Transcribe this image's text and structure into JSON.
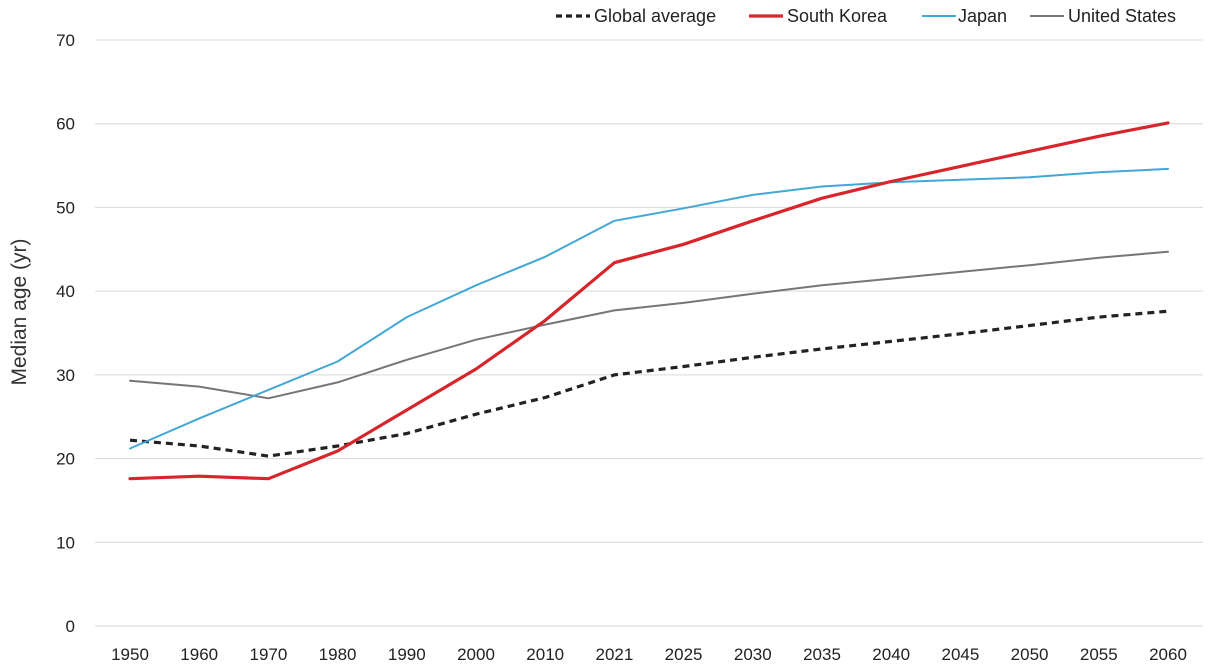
{
  "chart_data": {
    "type": "line",
    "title": "",
    "xlabel": "",
    "ylabel": "Median age (yr)",
    "ylim": [
      0,
      70
    ],
    "yticks": [
      0,
      10,
      20,
      30,
      40,
      50,
      60,
      70
    ],
    "grid": true,
    "legend_position": "top-right",
    "categories": [
      "1950",
      "1960",
      "1970",
      "1980",
      "1990",
      "2000",
      "2010",
      "2021",
      "2025",
      "2030",
      "2035",
      "2040",
      "2045",
      "2050",
      "2055",
      "2060"
    ],
    "series": [
      {
        "name": "Global average",
        "color": "#222222",
        "style": "dashed",
        "values": [
          22.2,
          21.5,
          20.3,
          21.5,
          23.0,
          25.3,
          27.3,
          30.0,
          31.0,
          32.1,
          33.1,
          34.0,
          34.9,
          35.9,
          36.9,
          37.6
        ]
      },
      {
        "name": "South Korea",
        "color": "#d7262b",
        "style": "solid-thick",
        "values": [
          17.6,
          17.9,
          17.6,
          20.9,
          25.8,
          30.7,
          36.5,
          43.4,
          45.6,
          48.4,
          51.1,
          53.1,
          54.9,
          56.7,
          58.5,
          60.1
        ]
      },
      {
        "name": "Japan",
        "color": "#43a7d6",
        "style": "solid",
        "values": [
          21.2,
          24.8,
          28.2,
          31.6,
          36.9,
          40.7,
          44.1,
          48.4,
          49.9,
          51.5,
          52.5,
          53.0,
          53.3,
          53.6,
          54.2,
          54.6
        ]
      },
      {
        "name": "United States",
        "color": "#767676",
        "style": "solid",
        "values": [
          29.3,
          28.6,
          27.2,
          29.1,
          31.8,
          34.2,
          36.0,
          37.7,
          38.6,
          39.7,
          40.7,
          41.5,
          42.3,
          43.1,
          44.0,
          44.7
        ]
      }
    ]
  }
}
